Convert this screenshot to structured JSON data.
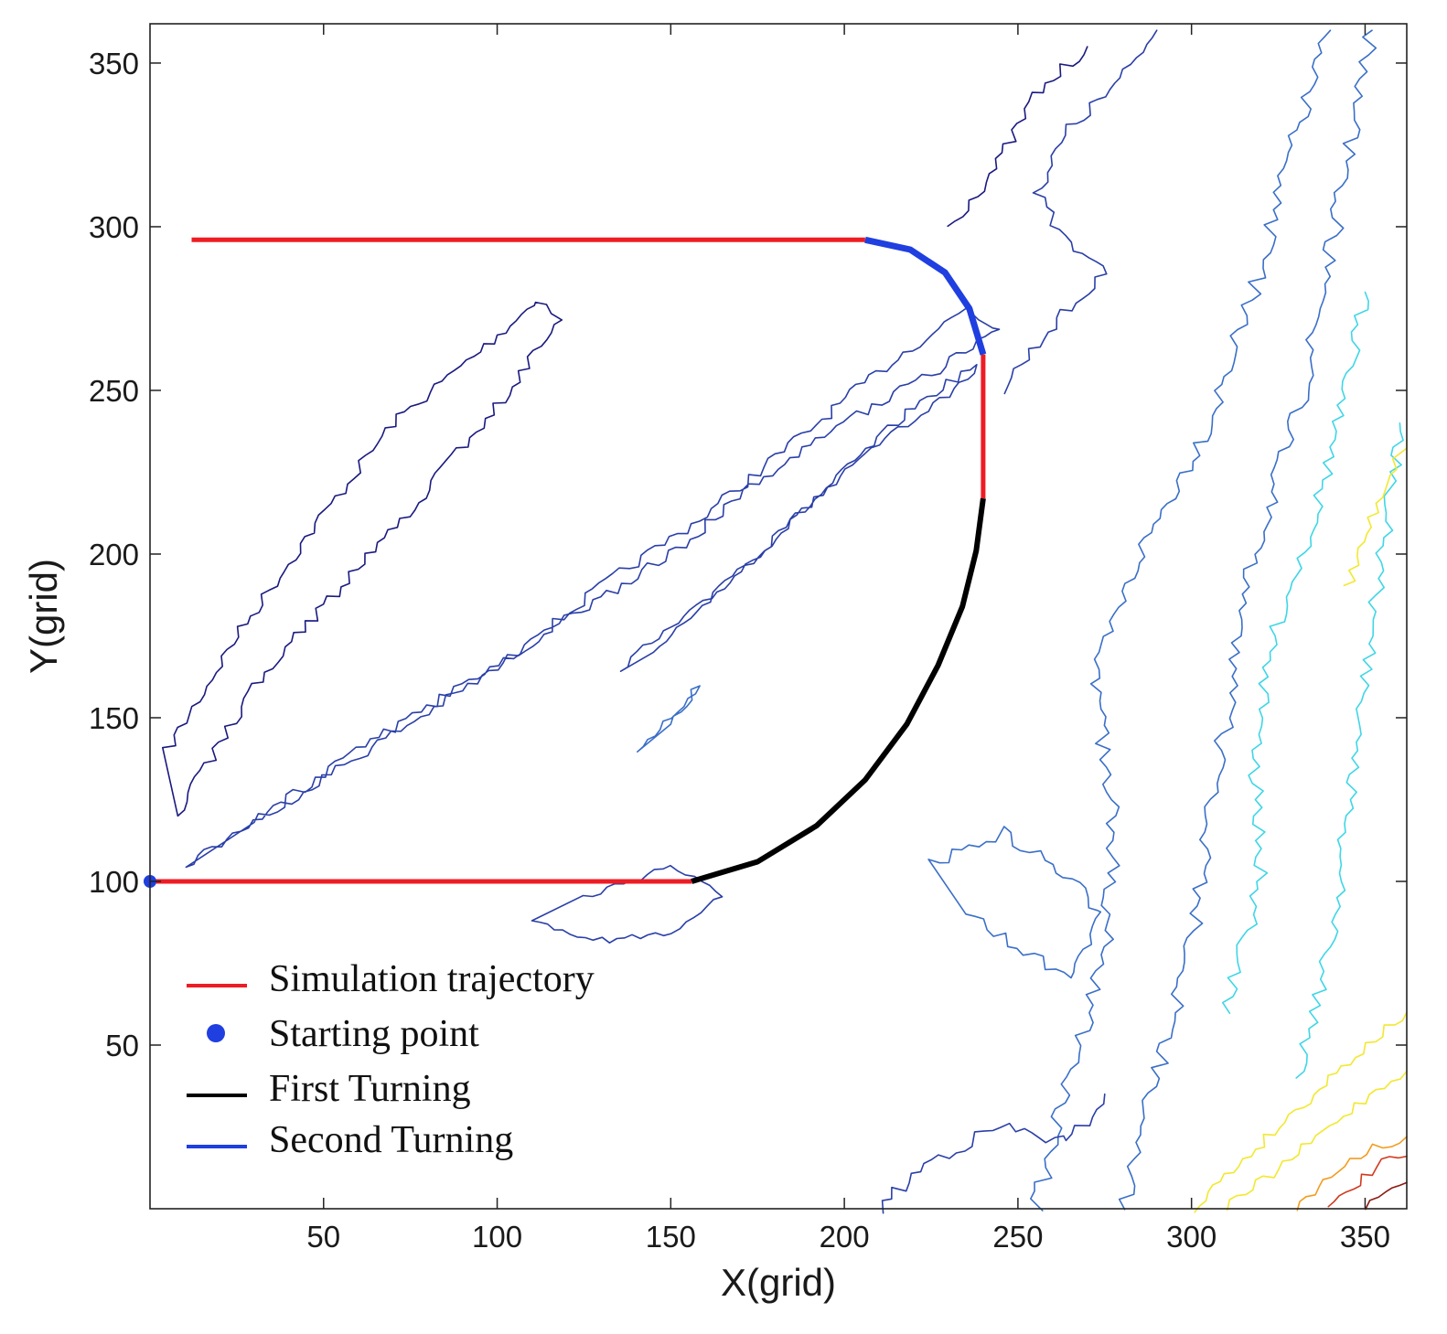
{
  "chart_data": {
    "type": "line",
    "title": "",
    "xlabel": "X(grid)",
    "ylabel": "Y(grid)",
    "xlim": [
      0,
      362
    ],
    "ylim": [
      0,
      362
    ],
    "xticks": [
      50,
      100,
      150,
      200,
      250,
      300,
      350
    ],
    "yticks": [
      50,
      100,
      150,
      200,
      250,
      300,
      350
    ],
    "grid": false,
    "background": "terrain contour map",
    "legend_position": "bottom-left",
    "series": [
      {
        "name": "Simulation trajectory",
        "color": "#ee1c24",
        "segments": [
          [
            [
              0,
              100
            ],
            [
              156,
              100
            ]
          ],
          [
            [
              240,
              217
            ],
            [
              240,
              261
            ]
          ],
          [
            [
              206,
              296
            ],
            [
              12,
              296
            ]
          ]
        ]
      },
      {
        "name": "Starting point",
        "color": "#1f3fe0",
        "marker": "circle",
        "points": [
          [
            0,
            100
          ]
        ]
      },
      {
        "name": "First Turning",
        "color": "#000000",
        "points": [
          [
            156,
            100
          ],
          [
            175,
            106
          ],
          [
            192,
            117
          ],
          [
            206,
            131
          ],
          [
            218,
            148
          ],
          [
            227,
            166
          ],
          [
            234,
            184
          ],
          [
            238,
            201
          ],
          [
            240,
            217
          ]
        ]
      },
      {
        "name": "Second Turning",
        "color": "#1f3fe0",
        "points": [
          [
            206,
            296
          ],
          [
            219,
            293
          ],
          [
            229,
            286
          ],
          [
            236,
            275
          ],
          [
            240,
            261
          ]
        ]
      }
    ],
    "contour_colors": [
      "#1a1a80",
      "#2a3fa8",
      "#3a6fc8",
      "#4aa5dc",
      "#3fd6e6",
      "#f2e830",
      "#f29c20",
      "#d03a1e",
      "#8a1c14"
    ]
  }
}
